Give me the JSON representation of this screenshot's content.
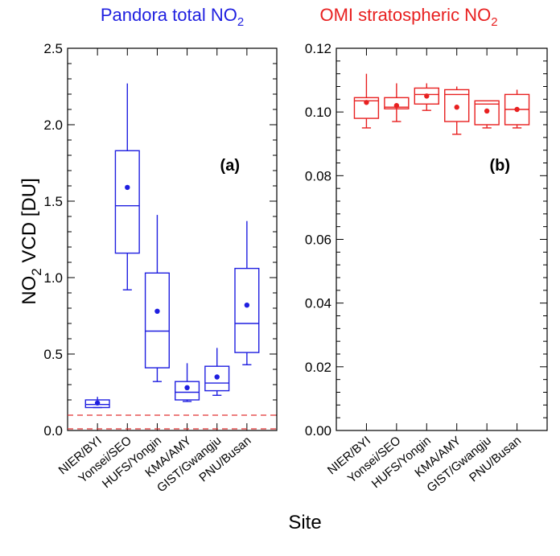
{
  "figure": {
    "ylabel_main": "NO",
    "ylabel_sub": "2",
    "ylabel_rest": " VCD [DU]",
    "xlabel": "Site",
    "sites": [
      "NIER/BYI",
      "Yonsei/SEO",
      "HUFS/Yongin",
      "KMA/AMY",
      "GIST/Gwangju",
      "PNU/Busan"
    ]
  },
  "chart_data": [
    {
      "type": "box",
      "panel_label": "(a)",
      "title_main": "Pandora total NO",
      "title_sub": "2",
      "color": "#1f1fe0",
      "ylim": [
        0,
        2.5
      ],
      "yticks": [
        "0.0",
        "0.5",
        "1.0",
        "1.5",
        "2.0",
        "2.5"
      ],
      "reference_lines": [
        0.0,
        0.1
      ],
      "reference_color": "#e03030",
      "categories": [
        "NIER/BYI",
        "Yonsei/SEO",
        "HUFS/Yongin",
        "KMA/AMY",
        "GIST/Gwangju",
        "PNU/Busan"
      ],
      "boxes": [
        {
          "whisker_low": 0.15,
          "q1": 0.15,
          "median": 0.17,
          "q3": 0.2,
          "whisker_high": 0.22,
          "mean": 0.18
        },
        {
          "whisker_low": 0.92,
          "q1": 1.16,
          "median": 1.47,
          "q3": 1.83,
          "whisker_high": 2.27,
          "mean": 1.59
        },
        {
          "whisker_low": 0.32,
          "q1": 0.41,
          "median": 0.65,
          "q3": 1.03,
          "whisker_high": 1.41,
          "mean": 0.78
        },
        {
          "whisker_low": 0.19,
          "q1": 0.2,
          "median": 0.25,
          "q3": 0.32,
          "whisker_high": 0.44,
          "mean": 0.28
        },
        {
          "whisker_low": 0.23,
          "q1": 0.26,
          "median": 0.31,
          "q3": 0.42,
          "whisker_high": 0.54,
          "mean": 0.35
        },
        {
          "whisker_low": 0.43,
          "q1": 0.51,
          "median": 0.7,
          "q3": 1.06,
          "whisker_high": 1.37,
          "mean": 0.82
        }
      ]
    },
    {
      "type": "box",
      "panel_label": "(b)",
      "title_main": "OMI stratospheric NO",
      "title_sub": "2",
      "color": "#e82020",
      "ylim": [
        0,
        0.12
      ],
      "yticks": [
        "0.00",
        "0.02",
        "0.04",
        "0.06",
        "0.08",
        "0.10",
        "0.12"
      ],
      "categories": [
        "NIER/BYI",
        "Yonsei/SEO",
        "HUFS/Yongin",
        "KMA/AMY",
        "GIST/Gwangju",
        "PNU/Busan"
      ],
      "boxes": [
        {
          "whisker_low": 0.095,
          "q1": 0.098,
          "median": 0.1035,
          "q3": 0.1045,
          "whisker_high": 0.112,
          "mean": 0.103
        },
        {
          "whisker_low": 0.097,
          "q1": 0.101,
          "median": 0.1015,
          "q3": 0.1045,
          "whisker_high": 0.109,
          "mean": 0.102
        },
        {
          "whisker_low": 0.1005,
          "q1": 0.1025,
          "median": 0.1055,
          "q3": 0.1075,
          "whisker_high": 0.109,
          "mean": 0.105
        },
        {
          "whisker_low": 0.093,
          "q1": 0.097,
          "median": 0.1055,
          "q3": 0.107,
          "whisker_high": 0.108,
          "mean": 0.1015
        },
        {
          "whisker_low": 0.095,
          "q1": 0.096,
          "median": 0.1025,
          "q3": 0.1035,
          "whisker_high": 0.1035,
          "mean": 0.1003
        },
        {
          "whisker_low": 0.095,
          "q1": 0.096,
          "median": 0.1008,
          "q3": 0.1055,
          "whisker_high": 0.107,
          "mean": 0.1008
        }
      ]
    }
  ]
}
